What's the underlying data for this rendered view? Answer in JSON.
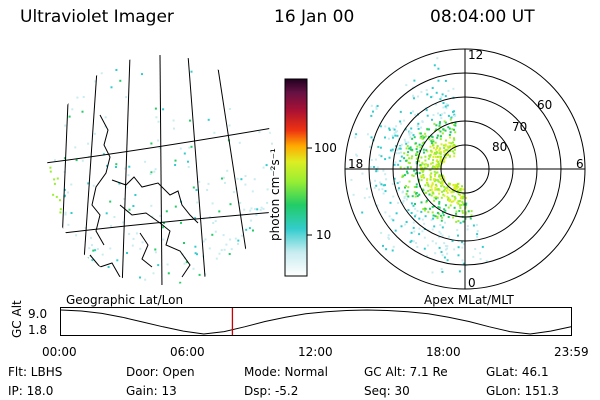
{
  "header": {
    "instrument": "Ultraviolet Imager",
    "date": "16 Jan 00",
    "time": "08:04:00 UT"
  },
  "colorbar": {
    "label": "photon cm⁻²s⁻¹",
    "ticks": [
      "100",
      "10"
    ]
  },
  "panels": {
    "geo_caption": "Geographic Lat/Lon",
    "apex_caption": "Apex MLat/MLT"
  },
  "polar": {
    "mlt_labels": [
      "12",
      "18",
      "6",
      "0"
    ],
    "lat_labels": [
      "60",
      "70",
      "80"
    ]
  },
  "timeline": {
    "ylabel": "GC Alt",
    "ticks_y": [
      "9.0",
      "1.8"
    ],
    "ticks_x": [
      "00:00",
      "06:00",
      "12:00",
      "18:00",
      "23:59"
    ],
    "current_time": 8.0667,
    "curve_fraction": [
      1.0,
      0.96,
      0.86,
      0.7,
      0.5,
      0.3,
      0.12,
      0.0,
      0.1,
      0.3,
      0.52,
      0.7,
      0.84,
      0.93,
      0.98,
      1.0,
      0.98,
      0.93,
      0.84,
      0.7,
      0.52,
      0.3,
      0.1,
      0.0,
      0.12,
      0.3
    ]
  },
  "status": {
    "filter": "Flt: LBHS",
    "ip": "IP: 18.0",
    "door": "Door: Open",
    "gain": "Gain: 13",
    "mode": "Mode: Normal",
    "dsp": "Dsp:    -5.2",
    "gc_alt": "GC Alt: 7.1 Re",
    "seq": "Seq: 30",
    "glat": "GLat:   46.1",
    "glon": "GLon: 151.3"
  },
  "colors": {
    "accent_time": "#cc0000",
    "foreground": "#000000",
    "background": "#ffffff"
  }
}
